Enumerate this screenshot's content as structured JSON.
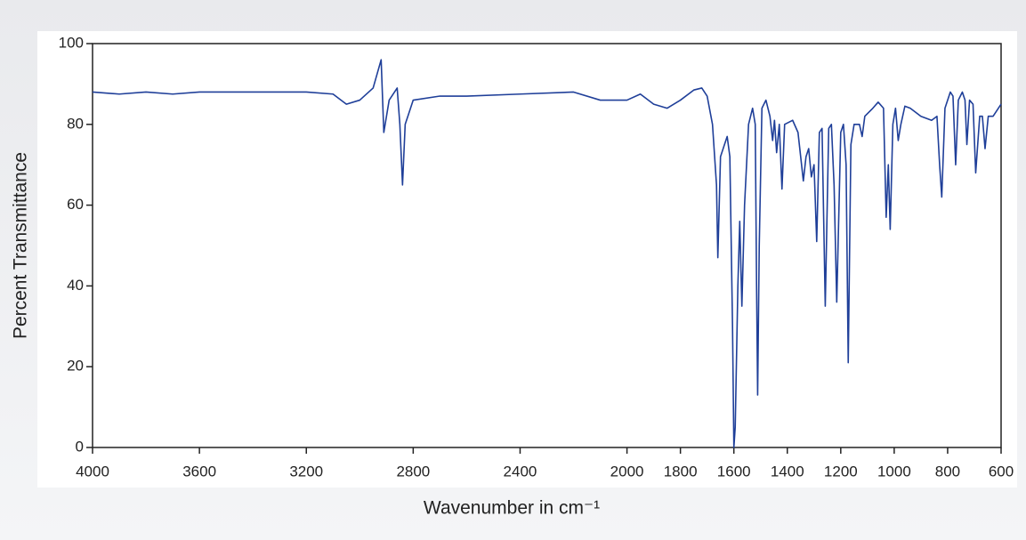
{
  "chart_data": {
    "type": "line",
    "x_label": "Wavenumber in cm⁻¹",
    "y_label": "Percent Transmittance",
    "x": [
      4000,
      3900,
      3800,
      3700,
      3600,
      3400,
      3200,
      3100,
      3050,
      3000,
      2950,
      2920,
      2910,
      2890,
      2860,
      2850,
      2840,
      2830,
      2800,
      2700,
      2600,
      2400,
      2200,
      2100,
      2000,
      1950,
      1900,
      1850,
      1800,
      1750,
      1720,
      1700,
      1680,
      1665,
      1660,
      1650,
      1640,
      1625,
      1615,
      1605,
      1600,
      1595,
      1585,
      1578,
      1570,
      1560,
      1545,
      1530,
      1520,
      1515,
      1511,
      1505,
      1495,
      1480,
      1465,
      1455,
      1448,
      1440,
      1430,
      1420,
      1410,
      1380,
      1360,
      1340,
      1330,
      1320,
      1310,
      1300,
      1290,
      1280,
      1270,
      1258,
      1245,
      1235,
      1225,
      1215,
      1200,
      1190,
      1180,
      1172,
      1162,
      1150,
      1130,
      1120,
      1110,
      1080,
      1060,
      1040,
      1030,
      1022,
      1015,
      1005,
      995,
      985,
      975,
      960,
      940,
      900,
      860,
      840,
      830,
      822,
      810,
      790,
      780,
      770,
      760,
      745,
      735,
      728,
      718,
      705,
      695,
      680,
      670,
      660,
      648,
      630,
      600
    ],
    "values": [
      88,
      87.5,
      88,
      87.5,
      88,
      88,
      88,
      87.5,
      85,
      86,
      89,
      96,
      78,
      86,
      89,
      80,
      65,
      80,
      86,
      87,
      87,
      87.5,
      88,
      86,
      86,
      87.5,
      85,
      84,
      86,
      88.5,
      89,
      87,
      80,
      65,
      47,
      72,
      74,
      77,
      72,
      30,
      0,
      5,
      40,
      56,
      35,
      60,
      80,
      84,
      80,
      40,
      13,
      50,
      84,
      86,
      82,
      76,
      81,
      73,
      80,
      64,
      80,
      81,
      78,
      66,
      72,
      74,
      67,
      70,
      51,
      78,
      79,
      35,
      79,
      80,
      65,
      36,
      78,
      80,
      70,
      21,
      75,
      80,
      80,
      77,
      82,
      84,
      85.5,
      84,
      57,
      70,
      54,
      80,
      84,
      76,
      80,
      84.5,
      84,
      82,
      81,
      82,
      70,
      62,
      84,
      88,
      87,
      70,
      86,
      88,
      86,
      75,
      86,
      85,
      68,
      82,
      82,
      74,
      82,
      82,
      85
    ],
    "color": "#1f3f99",
    "xlim": [
      4000,
      600
    ],
    "xticks": [
      4000,
      3600,
      3200,
      2800,
      2400,
      2000,
      1800,
      1600,
      1400,
      1200,
      1000,
      800,
      600
    ],
    "ylim": [
      0,
      100
    ],
    "yticks": [
      0,
      20,
      40,
      60,
      80,
      100
    ],
    "grid": false
  }
}
